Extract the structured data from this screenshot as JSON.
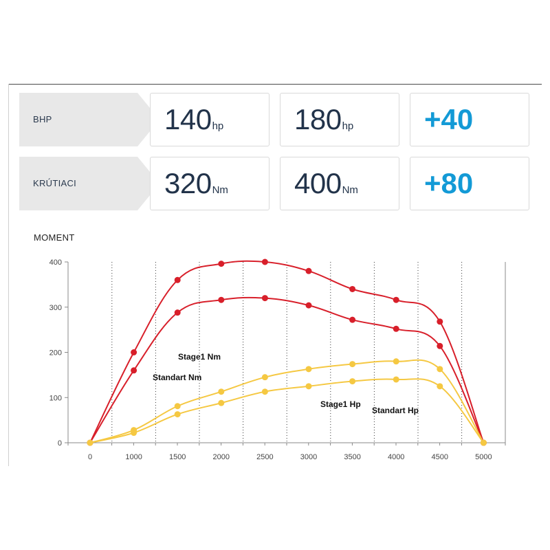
{
  "bhp": {
    "label": "BHP",
    "stock": {
      "value": "140",
      "unit": "hp"
    },
    "tuned": {
      "value": "180",
      "unit": "hp"
    },
    "gain": "+40"
  },
  "torque": {
    "label": "KRÚTIACI",
    "stock": {
      "value": "320",
      "unit": "Nm"
    },
    "tuned": {
      "value": "400",
      "unit": "Nm"
    },
    "gain": "+80"
  },
  "chart_title": "MOMENT",
  "colors": {
    "torque_series": "#d81f2a",
    "power_series": "#f5c842",
    "gain_accent": "#139ad6",
    "grid": "#333333",
    "axis": "#888888"
  },
  "chart_data": {
    "type": "line",
    "x": [
      0,
      1000,
      1500,
      2000,
      2500,
      3000,
      3500,
      4000,
      4500,
      5000
    ],
    "xlim": [
      0,
      5000
    ],
    "ylim": [
      0,
      400
    ],
    "x_ticks": [
      "0",
      "1000",
      "1500",
      "2000",
      "2500",
      "3000",
      "3500",
      "4000",
      "4500",
      "5000"
    ],
    "y_ticks": [
      "0",
      "100",
      "200",
      "300",
      "400"
    ],
    "grid": "vertical dotted",
    "series": [
      {
        "name": "Stage1 Nm",
        "color": "#d81f2a",
        "values": [
          0,
          200,
          360,
          396,
          400,
          380,
          340,
          316,
          268,
          0
        ]
      },
      {
        "name": "Standart Nm",
        "color": "#d81f2a",
        "values": [
          0,
          160,
          288,
          316,
          320,
          304,
          272,
          252,
          214,
          0
        ]
      },
      {
        "name": "Stage1 Hp",
        "color": "#f5c842",
        "values": [
          0,
          28,
          81,
          113,
          145,
          163,
          174,
          180,
          163,
          0
        ]
      },
      {
        "name": "Standart Hp",
        "color": "#f5c842",
        "values": [
          0,
          22,
          63,
          88,
          113,
          125,
          136,
          140,
          125,
          0
        ]
      }
    ]
  }
}
